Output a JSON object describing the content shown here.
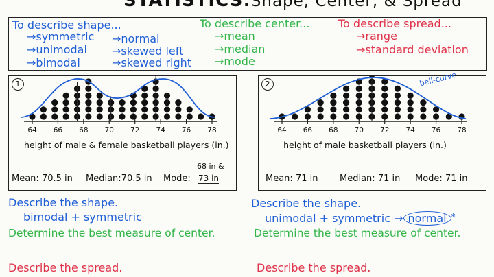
{
  "title": {
    "main": "STATISTICS:",
    "sub": "Shape, Center, & Spread"
  },
  "vocab": {
    "shape": {
      "heading": "To describe shape...",
      "items": [
        "symmetric",
        "normal",
        "unimodal",
        "skewed left",
        "bimodal",
        "skewed right"
      ]
    },
    "center": {
      "heading": "To describe center...",
      "items": [
        "mean",
        "median",
        "mode"
      ]
    },
    "spread": {
      "heading": "To describe spread...",
      "items": [
        "range",
        "standard deviation"
      ]
    }
  },
  "panel1": {
    "number": "1",
    "ticks": [
      "64",
      "66",
      "68",
      "70",
      "72",
      "74",
      "76",
      "78"
    ],
    "counts": [
      1,
      2,
      3,
      4,
      5,
      6,
      4,
      3,
      3,
      4,
      5,
      6,
      4,
      3,
      2,
      1,
      1
    ],
    "axis_label": "height of male & female basketball players (in.)",
    "mean_label": "Mean:",
    "mean_value": "70.5 in",
    "median_label": "Median:",
    "median_value": "70.5 in",
    "mode_label": "Mode:",
    "mode_value_1": "68 in &",
    "mode_value_2": "73 in"
  },
  "panel2": {
    "number": "2",
    "ticks": [
      "64",
      "66",
      "68",
      "70",
      "72",
      "74",
      "76",
      "78"
    ],
    "counts": [
      1,
      1,
      2,
      3,
      4,
      5,
      6,
      7,
      6,
      5,
      4,
      3,
      2,
      1,
      1
    ],
    "curve_note": "bell-curve",
    "axis_label": "height of male basketball players (in.)",
    "mean_label": "Mean:",
    "mean_value": "71 in",
    "median_label": "Median:",
    "median_value": "71 in",
    "mode_label": "Mode:",
    "mode_value": "71 in"
  },
  "questions": {
    "left": {
      "q1": "Describe the shape.",
      "a1": "bimodal + symmetric",
      "q2": "Determine the best measure of center.",
      "q3": "Describe the spread."
    },
    "right": {
      "q1": "Describe the shape.",
      "a1": "unimodal + symmetric",
      "a1b": "normal",
      "q2": "Determine the best measure of center.",
      "q3": "Describe the spread."
    }
  },
  "colors": {
    "blue": "#1f5fd6",
    "green": "#33b54a",
    "red": "#e0334a",
    "dot": "#111111"
  }
}
